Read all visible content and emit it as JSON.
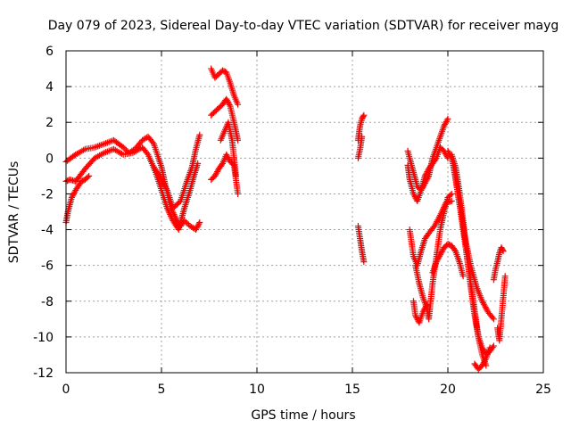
{
  "chart_data": {
    "type": "scatter",
    "title": "Day 079 of 2023, Sidereal Day-to-day VTEC variation (SDTVAR) for receiver mayg",
    "xlabel": "GPS time / hours",
    "ylabel": "SDTVAR / TECUs",
    "xlim": [
      0,
      25
    ],
    "ylim": [
      -12,
      6
    ],
    "xticks": [
      0,
      5,
      10,
      15,
      20,
      25
    ],
    "yticks": [
      -12,
      -10,
      -8,
      -6,
      -4,
      -2,
      0,
      2,
      4,
      6
    ],
    "grid": true,
    "marker": "+",
    "color": "#ff0000",
    "series": [
      {
        "name": "trace-1",
        "x": [
          0.0,
          0.5,
          1.0,
          1.5,
          2.0,
          2.5,
          3.0,
          3.3,
          3.6,
          4.0,
          4.3,
          4.6,
          5.0,
          5.2,
          5.5,
          5.8,
          6.0,
          6.2,
          6.5,
          6.8,
          7.0
        ],
        "y": [
          -0.2,
          0.2,
          0.5,
          0.6,
          0.8,
          1.0,
          0.6,
          0.3,
          0.5,
          1.0,
          1.2,
          0.8,
          -0.5,
          -1.5,
          -2.8,
          -3.5,
          -3.8,
          -3.5,
          -3.8,
          -4.0,
          -3.6
        ]
      },
      {
        "name": "trace-2",
        "x": [
          0.0,
          0.2,
          0.5,
          1.0,
          1.5,
          2.0,
          2.5,
          3.0,
          3.5,
          4.0,
          4.3,
          4.7,
          5.0,
          5.3,
          5.6,
          5.9,
          6.0,
          6.2,
          6.5,
          6.7,
          6.9
        ],
        "y": [
          -1.3,
          -1.2,
          -1.3,
          -0.6,
          0.0,
          0.3,
          0.5,
          0.2,
          0.3,
          0.6,
          0.2,
          -0.8,
          -1.8,
          -2.8,
          -3.5,
          -4.0,
          -3.6,
          -2.8,
          -1.8,
          -1.0,
          -0.3
        ]
      },
      {
        "name": "trace-3",
        "x": [
          0.0,
          0.1,
          0.3,
          0.5,
          0.8,
          1.0,
          1.2
        ],
        "y": [
          -3.6,
          -3.0,
          -2.2,
          -1.8,
          -1.3,
          -1.2,
          -1.0
        ]
      },
      {
        "name": "trace-4",
        "x": [
          4.6,
          5.0,
          5.3,
          5.6,
          6.0,
          6.3,
          6.6,
          6.8,
          7.0
        ],
        "y": [
          -0.5,
          -1.2,
          -1.8,
          -2.8,
          -2.4,
          -1.4,
          -0.5,
          0.5,
          1.3
        ]
      },
      {
        "name": "trace-5",
        "x": [
          7.6,
          7.8,
          8.0,
          8.2,
          8.4,
          8.6,
          8.8,
          9.0
        ],
        "y": [
          5.0,
          4.5,
          4.7,
          4.9,
          4.8,
          4.2,
          3.5,
          3.0
        ]
      },
      {
        "name": "trace-6",
        "x": [
          7.6,
          7.8,
          8.0,
          8.2,
          8.4,
          8.6,
          8.8,
          9.0
        ],
        "y": [
          2.4,
          2.6,
          2.8,
          3.0,
          3.3,
          2.9,
          2.0,
          1.0
        ]
      },
      {
        "name": "trace-7",
        "x": [
          7.6,
          7.8,
          8.0,
          8.2,
          8.4,
          8.6,
          8.8,
          9.0
        ],
        "y": [
          -1.2,
          -1.0,
          -0.6,
          -0.3,
          0.2,
          -0.2,
          -0.4,
          -2.0
        ]
      },
      {
        "name": "trace-8",
        "x": [
          8.1,
          8.3,
          8.5,
          8.7,
          8.9
        ],
        "y": [
          1.0,
          1.5,
          2.0,
          1.0,
          -1.0
        ]
      },
      {
        "name": "trace-9",
        "x": [
          15.3,
          15.4,
          15.5,
          15.6
        ],
        "y": [
          1.0,
          1.8,
          2.2,
          2.4
        ]
      },
      {
        "name": "trace-10",
        "x": [
          15.3,
          15.4,
          15.5
        ],
        "y": [
          0.0,
          0.5,
          1.2
        ]
      },
      {
        "name": "trace-11",
        "x": [
          15.3,
          15.4,
          15.5,
          15.6
        ],
        "y": [
          -3.8,
          -4.5,
          -5.2,
          -5.8
        ]
      },
      {
        "name": "trace-12",
        "x": [
          17.9,
          18.0,
          18.2,
          18.4,
          18.6,
          18.8,
          19.0,
          19.2,
          19.4,
          19.6,
          19.8,
          20.0
        ],
        "y": [
          0.4,
          0.0,
          -0.8,
          -1.6,
          -1.8,
          -1.4,
          -1.0,
          0.0,
          0.6,
          1.2,
          1.8,
          2.2
        ]
      },
      {
        "name": "trace-13",
        "x": [
          17.9,
          18.0,
          18.2,
          18.4,
          18.6,
          18.8,
          19.0,
          19.2,
          19.4,
          19.6,
          19.8,
          20.0
        ],
        "y": [
          -0.4,
          -1.2,
          -2.0,
          -2.4,
          -1.8,
          -1.0,
          -0.6,
          -0.3,
          0.0,
          0.6,
          0.4,
          0.0
        ]
      },
      {
        "name": "trace-14",
        "x": [
          18.0,
          18.2,
          18.4,
          18.6,
          18.8,
          19.0,
          19.3,
          19.6,
          19.9,
          20.2
        ],
        "y": [
          -4.0,
          -5.5,
          -6.0,
          -5.2,
          -4.5,
          -4.2,
          -3.8,
          -3.2,
          -2.5,
          -2.4
        ]
      },
      {
        "name": "trace-15",
        "x": [
          18.3,
          18.5,
          18.7,
          18.9,
          19.0,
          19.2,
          19.4,
          19.6,
          19.8,
          20.0,
          20.2
        ],
        "y": [
          -6.0,
          -7.0,
          -7.8,
          -8.4,
          -9.0,
          -7.0,
          -5.5,
          -4.0,
          -3.0,
          -2.2,
          -2.0
        ]
      },
      {
        "name": "trace-16",
        "x": [
          18.2,
          18.3,
          18.5,
          18.7,
          18.9
        ],
        "y": [
          -8.0,
          -8.8,
          -9.2,
          -8.6,
          -8.2
        ]
      },
      {
        "name": "trace-17",
        "x": [
          19.2,
          19.4,
          19.6,
          19.8,
          20.0,
          20.2,
          20.4,
          20.6,
          20.8
        ],
        "y": [
          -6.4,
          -5.8,
          -5.4,
          -5.0,
          -4.8,
          -4.9,
          -5.2,
          -5.8,
          -6.6
        ]
      },
      {
        "name": "trace-18",
        "x": [
          20.0,
          20.2,
          20.4,
          20.6,
          20.8,
          21.0,
          21.2,
          21.4,
          21.6,
          21.8,
          22.0
        ],
        "y": [
          0.4,
          0.0,
          -1.0,
          -2.5,
          -4.0,
          -5.5,
          -7.0,
          -8.5,
          -10.0,
          -11.0,
          -11.6
        ]
      },
      {
        "name": "trace-19",
        "x": [
          20.2,
          20.4,
          20.6,
          20.8,
          21.0,
          21.2,
          21.4,
          21.6,
          21.8,
          22.0,
          22.2,
          22.4
        ],
        "y": [
          0.2,
          -0.5,
          -1.8,
          -3.5,
          -5.5,
          -7.2,
          -8.8,
          -10.0,
          -10.6,
          -11.0,
          -10.8,
          -10.5
        ]
      },
      {
        "name": "trace-20",
        "x": [
          20.3,
          20.6,
          20.9,
          21.2,
          21.5,
          21.8,
          22.1,
          22.4
        ],
        "y": [
          -0.5,
          -2.5,
          -4.5,
          -6.0,
          -7.2,
          -8.0,
          -8.6,
          -9.0
        ]
      },
      {
        "name": "trace-21",
        "x": [
          21.4,
          21.6,
          21.8,
          22.0,
          22.2
        ],
        "y": [
          -11.5,
          -11.8,
          -11.6,
          -11.2,
          -10.6
        ]
      },
      {
        "name": "trace-22",
        "x": [
          22.4,
          22.5,
          22.6,
          22.7,
          22.8,
          22.9
        ],
        "y": [
          -6.8,
          -6.2,
          -5.8,
          -5.3,
          -5.0,
          -5.2
        ]
      },
      {
        "name": "trace-23",
        "x": [
          22.6,
          22.7,
          22.8,
          22.9,
          23.0
        ],
        "y": [
          -9.5,
          -10.2,
          -9.0,
          -7.8,
          -6.6
        ]
      }
    ]
  }
}
